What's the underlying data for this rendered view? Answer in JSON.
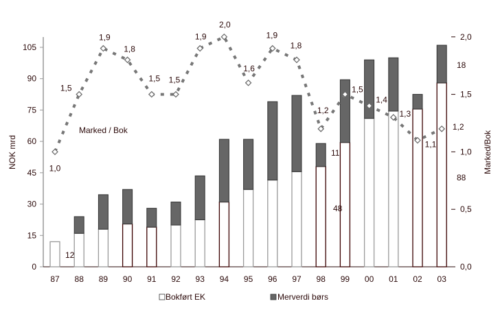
{
  "chart_data": {
    "type": "bar",
    "stacked": true,
    "categories": [
      "87",
      "88",
      "89",
      "90",
      "91",
      "92",
      "93",
      "94",
      "95",
      "96",
      "97",
      "98",
      "99",
      "00",
      "01",
      "02",
      "03"
    ],
    "series": [
      {
        "name": "Bokført EK",
        "color": "#ffffff",
        "values": [
          12,
          16,
          18,
          20.5,
          19,
          20,
          22.5,
          31,
          37,
          41.5,
          45.5,
          48,
          59.5,
          71,
          74.5,
          75.5,
          88
        ]
      },
      {
        "name": "Merverdi børs",
        "color": "#666666",
        "values": [
          0,
          8,
          16.5,
          16.5,
          9,
          11,
          21,
          30,
          24,
          37.5,
          36.5,
          11,
          30,
          28,
          25.5,
          7,
          18
        ]
      }
    ],
    "bar_outline_colors": [
      "#999999",
      "#999999",
      "#999999",
      "#3a0000",
      "#3a0000",
      "#999999",
      "#999999",
      "#3a0000",
      "#999999",
      "#999999",
      "#999999",
      "#3a0000",
      "#3a0000",
      "#999999",
      "#999999",
      "#3a0000",
      "#3a0000"
    ],
    "line_series": {
      "name": "Marked / Bok",
      "axis": "right",
      "values": [
        1.0,
        1.5,
        1.9,
        1.8,
        1.5,
        1.5,
        1.9,
        2.0,
        1.6,
        1.9,
        1.8,
        1.2,
        1.5,
        1.4,
        1.3,
        1.1,
        1.2
      ],
      "labels": [
        "1,0",
        "1,5",
        "1,9",
        "1,8",
        "1,5",
        "1,5",
        "1,9",
        "2,0",
        "1,6",
        "1,9",
        "1,8",
        "1,2",
        "1,5",
        "1,4",
        "1,3",
        "1,1",
        "1,2"
      ],
      "color": "#777777",
      "style": "dashed"
    },
    "bar_data_labels": [
      {
        "category": "87",
        "text": "12"
      },
      {
        "category": "98",
        "text": "11"
      },
      {
        "category": "98",
        "text": "48"
      },
      {
        "category": "03",
        "text": "18"
      },
      {
        "category": "03",
        "text": "88"
      }
    ],
    "ylabel": "NOK  mrd",
    "ylabel_right": "Marked/Bok",
    "ylim": [
      0,
      110
    ],
    "yticks": [
      "0",
      "15",
      "30",
      "45",
      "60",
      "75",
      "90",
      "105"
    ],
    "ylim_right": [
      0,
      2.0
    ],
    "yticks_right": [
      "0,0",
      "0,5",
      "1,0",
      "1,5",
      "2,0"
    ],
    "line_annotation": "Marked / Bok",
    "legend": [
      "Bokført EK",
      "Merverdi børs"
    ],
    "legend_position": "bottom",
    "grid": false
  }
}
